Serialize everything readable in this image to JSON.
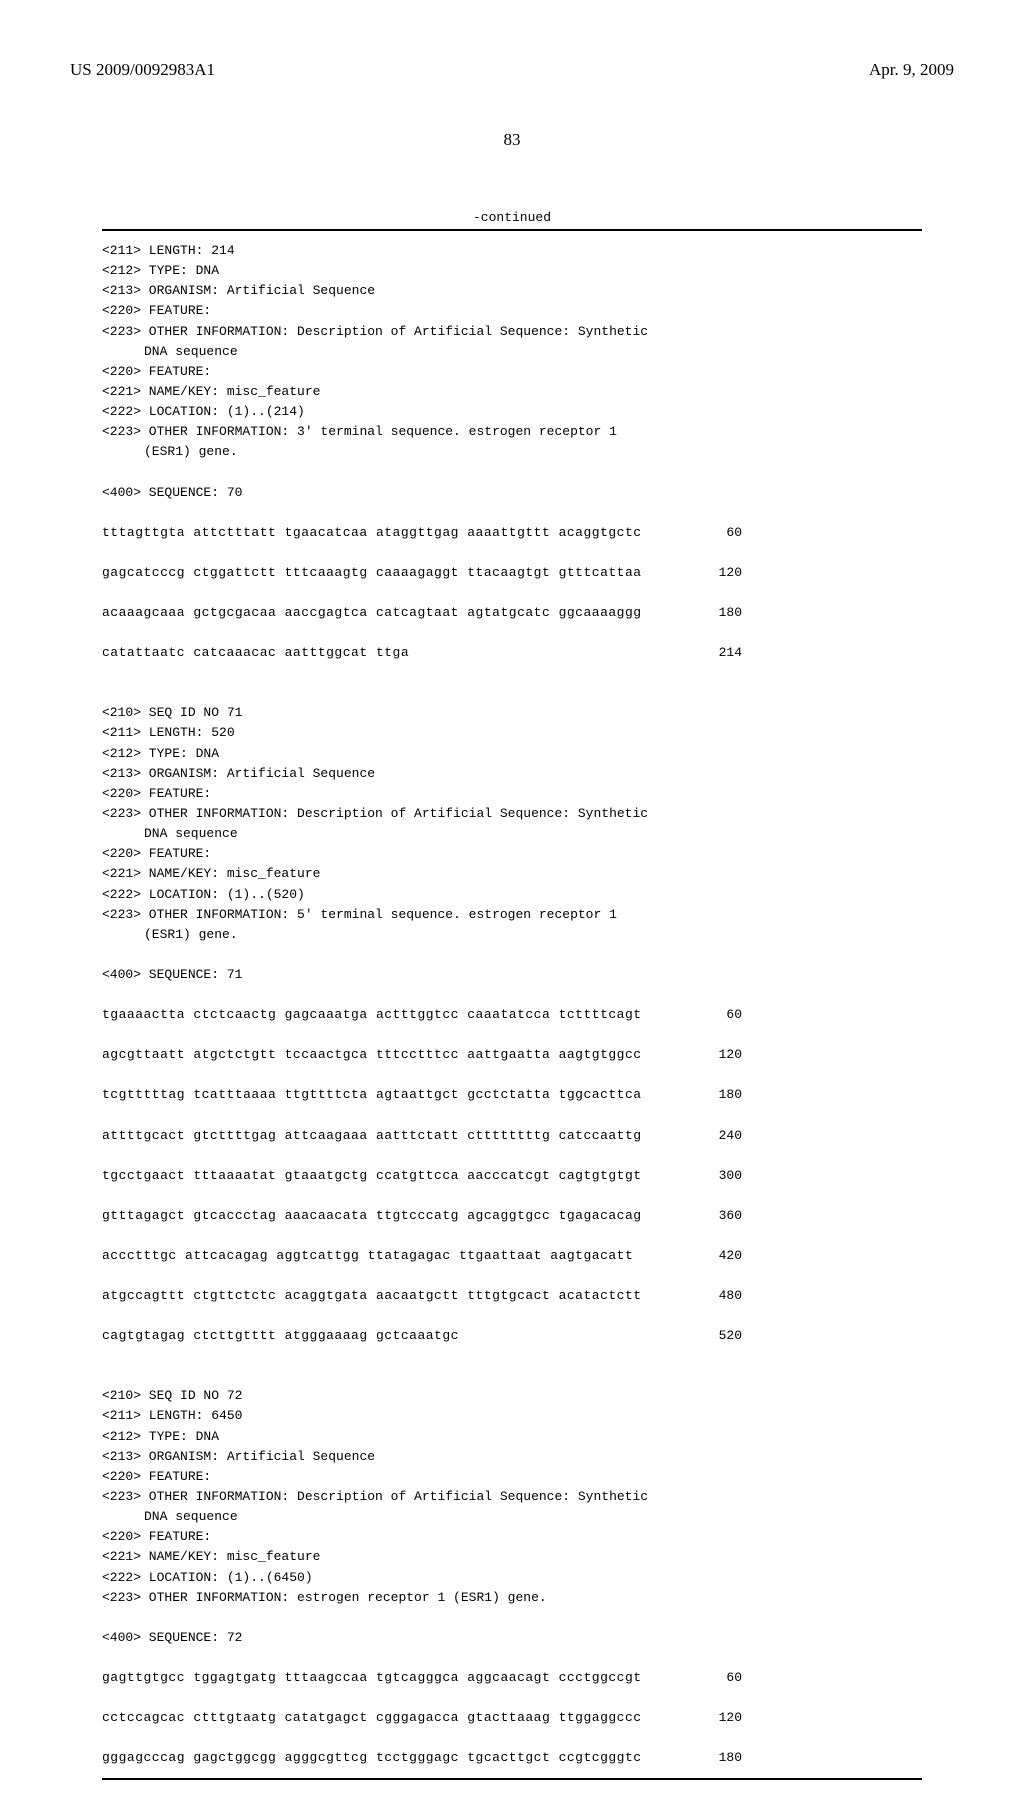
{
  "header": {
    "left": "US 2009/0092983A1",
    "right": "Apr. 9, 2009"
  },
  "page_number": "83",
  "continued_label": "-continued",
  "entries": [
    {
      "type": "meta",
      "text": "<211> LENGTH: 214"
    },
    {
      "type": "meta",
      "text": "<212> TYPE: DNA"
    },
    {
      "type": "meta",
      "text": "<213> ORGANISM: Artificial Sequence"
    },
    {
      "type": "meta",
      "text": "<220> FEATURE:"
    },
    {
      "type": "meta",
      "text": "<223> OTHER INFORMATION: Description of Artificial Sequence: Synthetic"
    },
    {
      "type": "indent",
      "text": "DNA sequence"
    },
    {
      "type": "meta",
      "text": "<220> FEATURE:"
    },
    {
      "type": "meta",
      "text": "<221> NAME/KEY: misc_feature"
    },
    {
      "type": "meta",
      "text": "<222> LOCATION: (1)..(214)"
    },
    {
      "type": "meta",
      "text": "<223> OTHER INFORMATION: 3' terminal sequence. estrogen receptor 1"
    },
    {
      "type": "indent",
      "text": "(ESR1) gene."
    },
    {
      "type": "blank"
    },
    {
      "type": "meta",
      "text": "<400> SEQUENCE: 70"
    },
    {
      "type": "blank"
    },
    {
      "type": "seq",
      "seq": "tttagttgta attctttatt tgaacatcaa ataggttgag aaaattgttt acaggtgctc",
      "num": "60"
    },
    {
      "type": "blank"
    },
    {
      "type": "seq",
      "seq": "gagcatcccg ctggattctt tttcaaagtg caaaagaggt ttacaagtgt gtttcattaa",
      "num": "120"
    },
    {
      "type": "blank"
    },
    {
      "type": "seq",
      "seq": "acaaagcaaa gctgcgacaa aaccgagtca catcagtaat agtatgcatc ggcaaaaggg",
      "num": "180"
    },
    {
      "type": "blank"
    },
    {
      "type": "seq",
      "seq": "catattaatc catcaaacac aatttggcat ttga",
      "num": "214"
    },
    {
      "type": "blank"
    },
    {
      "type": "blank"
    },
    {
      "type": "meta",
      "text": "<210> SEQ ID NO 71"
    },
    {
      "type": "meta",
      "text": "<211> LENGTH: 520"
    },
    {
      "type": "meta",
      "text": "<212> TYPE: DNA"
    },
    {
      "type": "meta",
      "text": "<213> ORGANISM: Artificial Sequence"
    },
    {
      "type": "meta",
      "text": "<220> FEATURE:"
    },
    {
      "type": "meta",
      "text": "<223> OTHER INFORMATION: Description of Artificial Sequence: Synthetic"
    },
    {
      "type": "indent",
      "text": "DNA sequence"
    },
    {
      "type": "meta",
      "text": "<220> FEATURE:"
    },
    {
      "type": "meta",
      "text": "<221> NAME/KEY: misc_feature"
    },
    {
      "type": "meta",
      "text": "<222> LOCATION: (1)..(520)"
    },
    {
      "type": "meta",
      "text": "<223> OTHER INFORMATION: 5' terminal sequence. estrogen receptor 1"
    },
    {
      "type": "indent",
      "text": "(ESR1) gene."
    },
    {
      "type": "blank"
    },
    {
      "type": "meta",
      "text": "<400> SEQUENCE: 71"
    },
    {
      "type": "blank"
    },
    {
      "type": "seq",
      "seq": "tgaaaactta ctctcaactg gagcaaatga actttggtcc caaatatcca tcttttcagt",
      "num": "60"
    },
    {
      "type": "blank"
    },
    {
      "type": "seq",
      "seq": "agcgttaatt atgctctgtt tccaactgca tttcctttcc aattgaatta aagtgtggcc",
      "num": "120"
    },
    {
      "type": "blank"
    },
    {
      "type": "seq",
      "seq": "tcgtttttag tcatttaaaa ttgttttcta agtaattgct gcctctatta tggcacttca",
      "num": "180"
    },
    {
      "type": "blank"
    },
    {
      "type": "seq",
      "seq": "attttgcact gtcttttgag attcaagaaa aatttctatt cttttttttg catccaattg",
      "num": "240"
    },
    {
      "type": "blank"
    },
    {
      "type": "seq",
      "seq": "tgcctgaact tttaaaatat gtaaatgctg ccatgttcca aacccatcgt cagtgtgtgt",
      "num": "300"
    },
    {
      "type": "blank"
    },
    {
      "type": "seq",
      "seq": "gtttagagct gtcaccctag aaacaacata ttgtcccatg agcaggtgcc tgagacacag",
      "num": "360"
    },
    {
      "type": "blank"
    },
    {
      "type": "seq",
      "seq": "accctttgc attcacagag aggtcattgg ttatagagac ttgaattaat aagtgacatt",
      "num": "420"
    },
    {
      "type": "blank"
    },
    {
      "type": "seq",
      "seq": "atgccagttt ctgttctctc acaggtgata aacaatgctt tttgtgcact acatactctt",
      "num": "480"
    },
    {
      "type": "blank"
    },
    {
      "type": "seq",
      "seq": "cagtgtagag ctcttgtttt atgggaaaag gctcaaatgc",
      "num": "520"
    },
    {
      "type": "blank"
    },
    {
      "type": "blank"
    },
    {
      "type": "meta",
      "text": "<210> SEQ ID NO 72"
    },
    {
      "type": "meta",
      "text": "<211> LENGTH: 6450"
    },
    {
      "type": "meta",
      "text": "<212> TYPE: DNA"
    },
    {
      "type": "meta",
      "text": "<213> ORGANISM: Artificial Sequence"
    },
    {
      "type": "meta",
      "text": "<220> FEATURE:"
    },
    {
      "type": "meta",
      "text": "<223> OTHER INFORMATION: Description of Artificial Sequence: Synthetic"
    },
    {
      "type": "indent",
      "text": "DNA sequence"
    },
    {
      "type": "meta",
      "text": "<220> FEATURE:"
    },
    {
      "type": "meta",
      "text": "<221> NAME/KEY: misc_feature"
    },
    {
      "type": "meta",
      "text": "<222> LOCATION: (1)..(6450)"
    },
    {
      "type": "meta",
      "text": "<223> OTHER INFORMATION: estrogen receptor 1 (ESR1) gene."
    },
    {
      "type": "blank"
    },
    {
      "type": "meta",
      "text": "<400> SEQUENCE: 72"
    },
    {
      "type": "blank"
    },
    {
      "type": "seq",
      "seq": "gagttgtgcc tggagtgatg tttaagccaa tgtcagggca aggcaacagt ccctggccgt",
      "num": "60"
    },
    {
      "type": "blank"
    },
    {
      "type": "seq",
      "seq": "cctccagcac ctttgtaatg catatgagct cgggagacca gtacttaaag ttggaggccc",
      "num": "120"
    },
    {
      "type": "blank"
    },
    {
      "type": "seq",
      "seq": "gggagcccag gagctggcgg agggcgttcg tcctgggagc tgcacttgct ccgtcgggtc",
      "num": "180"
    }
  ]
}
